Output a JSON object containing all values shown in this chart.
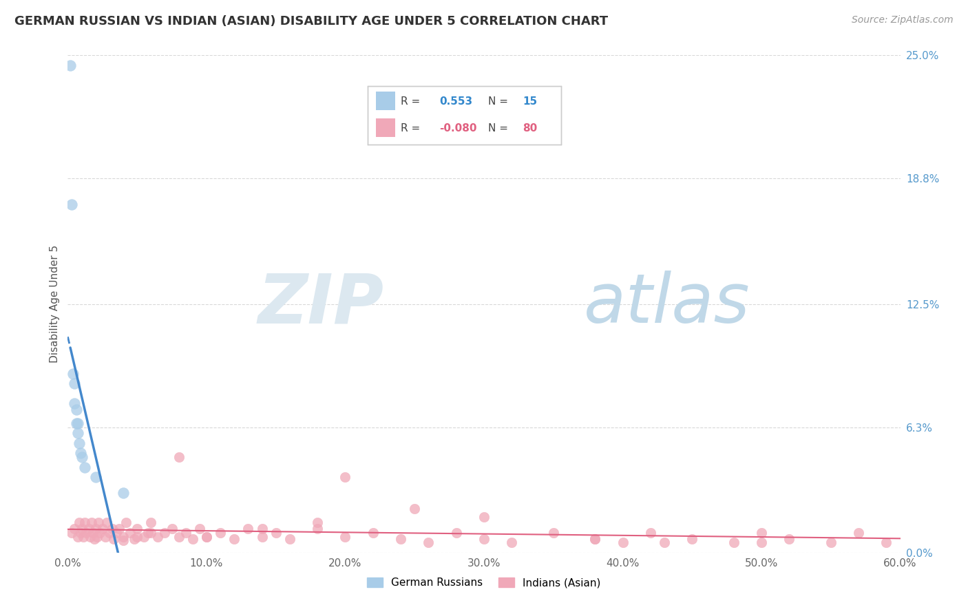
{
  "title": "GERMAN RUSSIAN VS INDIAN (ASIAN) DISABILITY AGE UNDER 5 CORRELATION CHART",
  "source": "Source: ZipAtlas.com",
  "ylabel": "Disability Age Under 5",
  "xlim": [
    0.0,
    0.6
  ],
  "ylim": [
    0.0,
    0.25
  ],
  "xtick_labels": [
    "0.0%",
    "10.0%",
    "20.0%",
    "30.0%",
    "40.0%",
    "50.0%",
    "60.0%"
  ],
  "xtick_values": [
    0.0,
    0.1,
    0.2,
    0.3,
    0.4,
    0.5,
    0.6
  ],
  "ytick_labels": [
    "0.0%",
    "6.3%",
    "12.5%",
    "18.8%",
    "25.0%"
  ],
  "ytick_values": [
    0.0,
    0.063,
    0.125,
    0.188,
    0.25
  ],
  "legend_label1": "German Russians",
  "legend_label2": "Indians (Asian)",
  "blue_color": "#a8cce8",
  "pink_color": "#f0a8b8",
  "blue_line_color": "#4488cc",
  "pink_line_color": "#e06080",
  "background_color": "#ffffff",
  "grid_color": "#d8d8d8",
  "blue_scatter_x": [
    0.002,
    0.003,
    0.004,
    0.005,
    0.005,
    0.006,
    0.006,
    0.007,
    0.007,
    0.008,
    0.009,
    0.01,
    0.012,
    0.02,
    0.04
  ],
  "blue_scatter_y": [
    0.245,
    0.175,
    0.09,
    0.085,
    0.075,
    0.072,
    0.065,
    0.065,
    0.06,
    0.055,
    0.05,
    0.048,
    0.043,
    0.038,
    0.03
  ],
  "pink_scatter_x": [
    0.003,
    0.005,
    0.007,
    0.008,
    0.009,
    0.01,
    0.011,
    0.012,
    0.013,
    0.015,
    0.016,
    0.017,
    0.018,
    0.019,
    0.02,
    0.021,
    0.022,
    0.023,
    0.025,
    0.027,
    0.028,
    0.03,
    0.032,
    0.033,
    0.035,
    0.037,
    0.04,
    0.042,
    0.045,
    0.048,
    0.05,
    0.055,
    0.058,
    0.06,
    0.065,
    0.07,
    0.075,
    0.08,
    0.085,
    0.09,
    0.095,
    0.1,
    0.11,
    0.12,
    0.13,
    0.14,
    0.15,
    0.16,
    0.18,
    0.2,
    0.22,
    0.24,
    0.26,
    0.28,
    0.3,
    0.32,
    0.35,
    0.38,
    0.4,
    0.42,
    0.45,
    0.48,
    0.5,
    0.52,
    0.55,
    0.57,
    0.59,
    0.2,
    0.25,
    0.3,
    0.18,
    0.14,
    0.1,
    0.08,
    0.06,
    0.05,
    0.04,
    0.38,
    0.43,
    0.5
  ],
  "pink_scatter_y": [
    0.01,
    0.012,
    0.008,
    0.015,
    0.01,
    0.012,
    0.008,
    0.015,
    0.01,
    0.012,
    0.008,
    0.015,
    0.01,
    0.007,
    0.012,
    0.008,
    0.015,
    0.01,
    0.012,
    0.008,
    0.015,
    0.01,
    0.012,
    0.007,
    0.01,
    0.012,
    0.008,
    0.015,
    0.01,
    0.007,
    0.012,
    0.008,
    0.01,
    0.015,
    0.008,
    0.01,
    0.012,
    0.008,
    0.01,
    0.007,
    0.012,
    0.008,
    0.01,
    0.007,
    0.012,
    0.008,
    0.01,
    0.007,
    0.012,
    0.008,
    0.01,
    0.007,
    0.005,
    0.01,
    0.007,
    0.005,
    0.01,
    0.007,
    0.005,
    0.01,
    0.007,
    0.005,
    0.01,
    0.007,
    0.005,
    0.01,
    0.005,
    0.038,
    0.022,
    0.018,
    0.015,
    0.012,
    0.008,
    0.048,
    0.01,
    0.008,
    0.006,
    0.007,
    0.005,
    0.005
  ]
}
